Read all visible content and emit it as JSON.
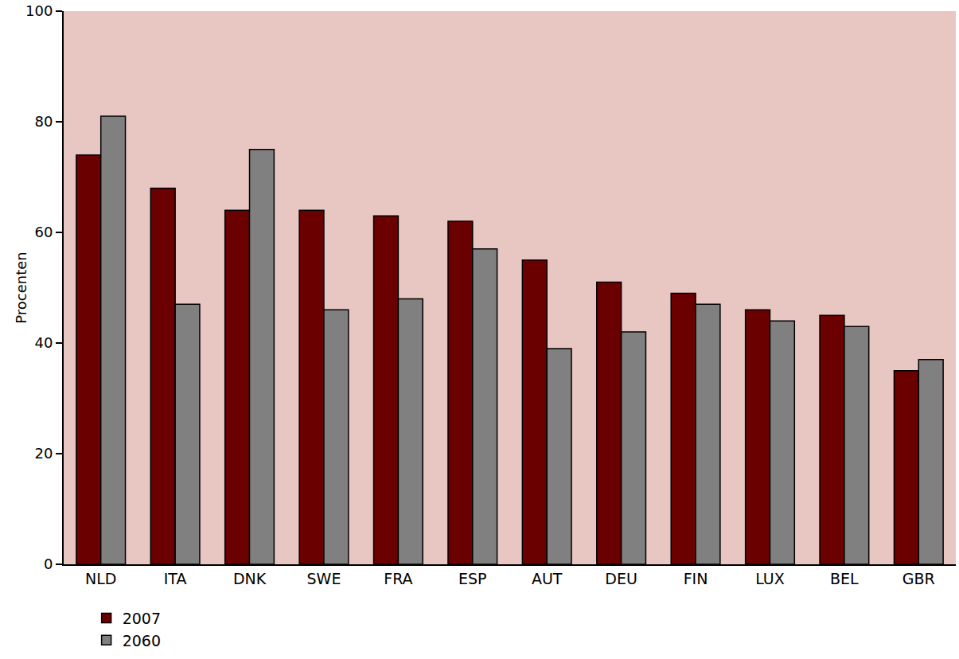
{
  "chart_data": {
    "type": "bar",
    "y_label": "Procenten",
    "categories": [
      "NLD",
      "ITA",
      "DNK",
      "SWE",
      "FRA",
      "ESP",
      "AUT",
      "DEU",
      "FIN",
      "LUX",
      "BEL",
      "GBR"
    ],
    "series": [
      {
        "name": "2007",
        "color": "#6b0000",
        "values": [
          74,
          68,
          64,
          64,
          63,
          62,
          55,
          51,
          49,
          46,
          45,
          35
        ]
      },
      {
        "name": "2060",
        "color": "#808080",
        "values": [
          81,
          47,
          75,
          46,
          48,
          57,
          39,
          42,
          47,
          44,
          43,
          37
        ]
      }
    ],
    "ylim": [
      0,
      100
    ],
    "yticks": [
      0,
      20,
      40,
      60,
      80,
      100
    ],
    "grid": false,
    "legend": "bottom"
  }
}
